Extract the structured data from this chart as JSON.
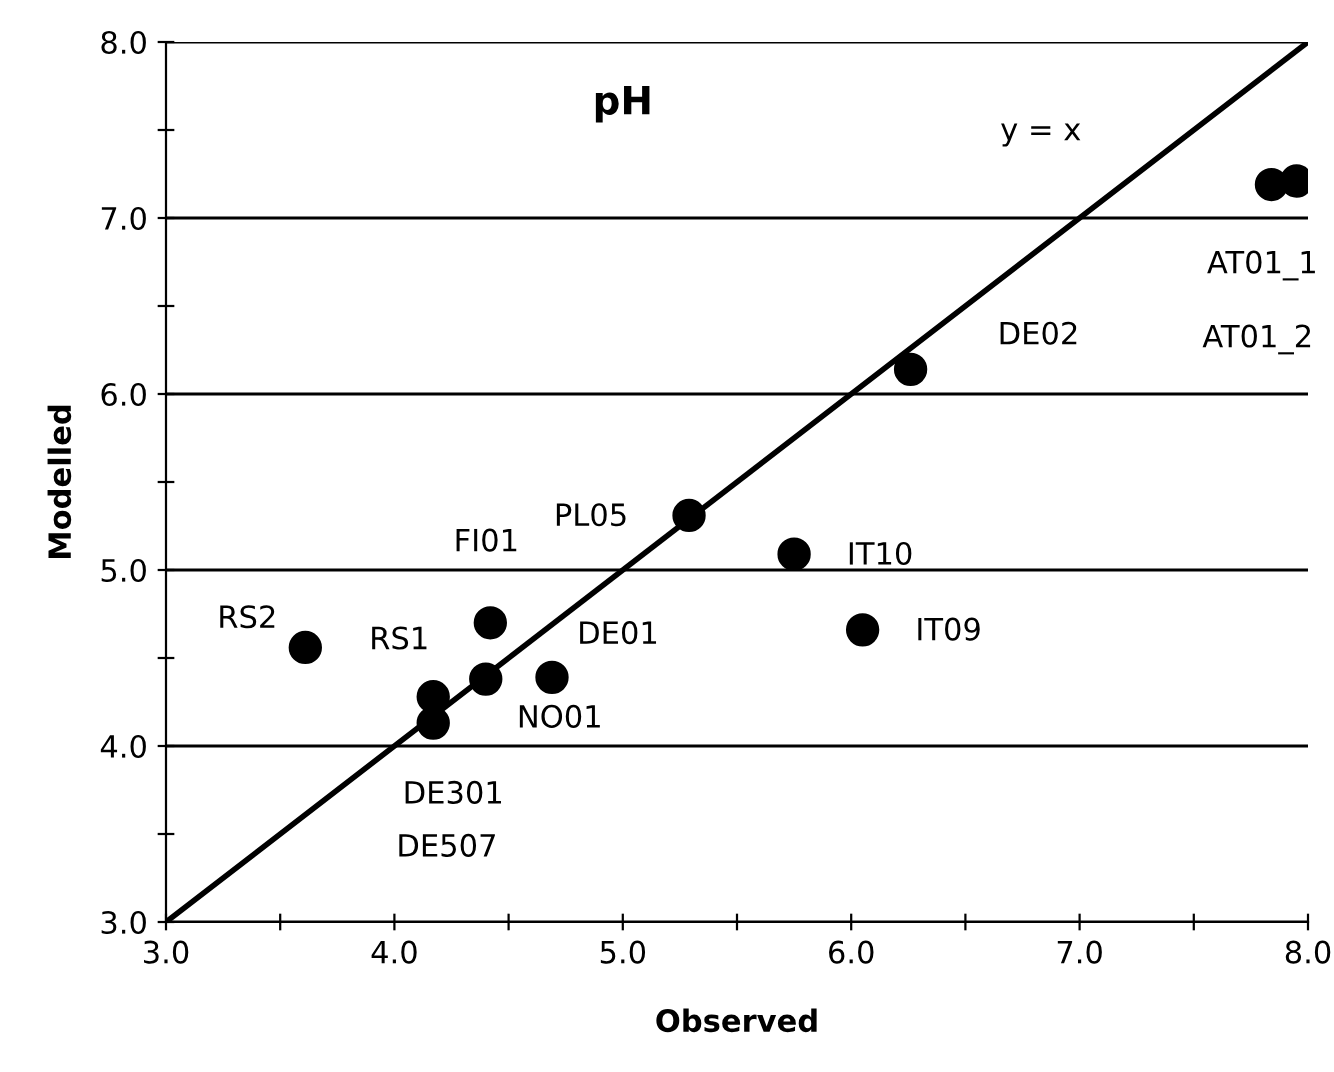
{
  "chart_data": {
    "type": "scatter",
    "title": "pH",
    "xlabel": "Observed",
    "ylabel": "Modelled",
    "xlim": [
      3.0,
      8.0
    ],
    "ylim": [
      3.0,
      8.0
    ],
    "xticks": [
      {
        "value": 3.0,
        "label": "3.0"
      },
      {
        "value": 3.5,
        "label": null
      },
      {
        "value": 4.0,
        "label": "4.0"
      },
      {
        "value": 4.5,
        "label": null
      },
      {
        "value": 5.0,
        "label": "5.0"
      },
      {
        "value": 5.5,
        "label": null
      },
      {
        "value": 6.0,
        "label": "6.0"
      },
      {
        "value": 6.5,
        "label": null
      },
      {
        "value": 7.0,
        "label": "7.0"
      },
      {
        "value": 7.5,
        "label": null
      },
      {
        "value": 8.0,
        "label": "8.0"
      }
    ],
    "yticks": [
      {
        "value": 3.0,
        "label": "3.0"
      },
      {
        "value": 3.5,
        "label": null
      },
      {
        "value": 4.0,
        "label": "4.0"
      },
      {
        "value": 4.5,
        "label": null
      },
      {
        "value": 5.0,
        "label": "5.0"
      },
      {
        "value": 5.5,
        "label": null
      },
      {
        "value": 6.0,
        "label": "6.0"
      },
      {
        "value": 6.5,
        "label": null
      },
      {
        "value": 7.0,
        "label": "7.0"
      },
      {
        "value": 7.5,
        "label": null
      },
      {
        "value": 8.0,
        "label": "8.0"
      }
    ],
    "grid": "y",
    "legend": false,
    "series": [
      {
        "color": "#000000",
        "marker": "circle",
        "x": [
          3.61,
          4.17,
          4.17,
          4.4,
          4.42,
          4.69,
          5.29,
          5.75,
          6.05,
          6.26,
          7.84,
          7.95
        ],
        "values": [
          4.56,
          4.28,
          4.13,
          4.38,
          4.7,
          4.39,
          5.31,
          5.09,
          4.66,
          6.14,
          7.19,
          7.21
        ]
      },
      {
        "type": "line",
        "color": "#000000",
        "line_style": "solid",
        "x": [
          3.0,
          8.0
        ],
        "values": [
          3.0,
          8.0
        ]
      }
    ],
    "annotations": [
      "y = x",
      {
        "text": "RS2",
        "x": 3.61,
        "y": 4.56
      },
      {
        "text": "RS1",
        "x": 4.17,
        "y": 4.28
      },
      {
        "text": "FI01",
        "x": 4.42,
        "y": 4.7
      },
      {
        "text": "PL05",
        "x": 5.29,
        "y": 5.31
      },
      {
        "text": "DE01",
        "x": 4.69,
        "y": 4.39
      },
      {
        "text": "NO01",
        "x": 4.4,
        "y": 4.38
      },
      {
        "text": "DE301",
        "x": 4.17,
        "y": 4.13
      },
      "DE507",
      {
        "text": "IT10",
        "x": 5.75,
        "y": 5.09
      },
      {
        "text": "IT09",
        "x": 6.05,
        "y": 4.66
      },
      "DE02",
      "AT01_1",
      "AT01_2"
    ]
  }
}
